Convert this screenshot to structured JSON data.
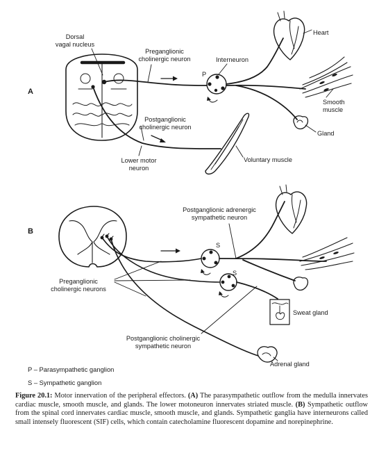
{
  "panels": {
    "a": "A",
    "b": "B"
  },
  "labels_a": {
    "dorsal_vagal_nucleus": [
      "Dorsal",
      "vagal nucleus"
    ],
    "preganglionic_cholinergic": [
      "Preganglionic",
      "cholinergic neuron"
    ],
    "interneuron": "Interneuron",
    "p_marker": "P",
    "heart": "Heart",
    "smooth_muscle": [
      "Smooth",
      "muscle"
    ],
    "gland": "Gland",
    "postganglionic_cholinergic": [
      "Postganglionic",
      "cholinergic neuron"
    ],
    "lower_motor_neuron": [
      "Lower motor",
      "neuron"
    ],
    "voluntary_muscle": "Voluntary muscle"
  },
  "labels_b": {
    "postganglionic_adrenergic": [
      "Postganglionic adrenergic",
      "sympathetic neuron"
    ],
    "s_marker_1": "S",
    "s_marker_2": "S",
    "preganglionic_cholinergic_neurons": [
      "Preganglionic",
      "cholinergic neurons"
    ],
    "sweat_gland": "Sweat gland",
    "postganglionic_sympathetic_cholinergic": [
      "Postganglionic cholinergic",
      "sympathetic neuron"
    ],
    "adrenal_gland": "Adrenal gland"
  },
  "legend": {
    "p": "P – Parasympathetic ganglion",
    "s": "S – Sympathetic ganglion"
  },
  "caption": {
    "label": "Figure 20.1:",
    "text1": " Motor innervation of the peripheral effectors. ",
    "a_label": "(A)",
    "text2": " The parasympathetic outflow from the medulla innervates cardiac muscle, smooth muscle, and glands. The lower motoneuron innervates striated muscle. ",
    "b_label": "(B)",
    "text3": " Sympathetic outflow from the spinal cord innervates cardiac muscle, smooth muscle, and glands. Sympathetic ganglia have interneurons called small intensely fluorescent (SIF) cells, which contain catecholamine fluorescent dopamine and norepinephrine."
  }
}
